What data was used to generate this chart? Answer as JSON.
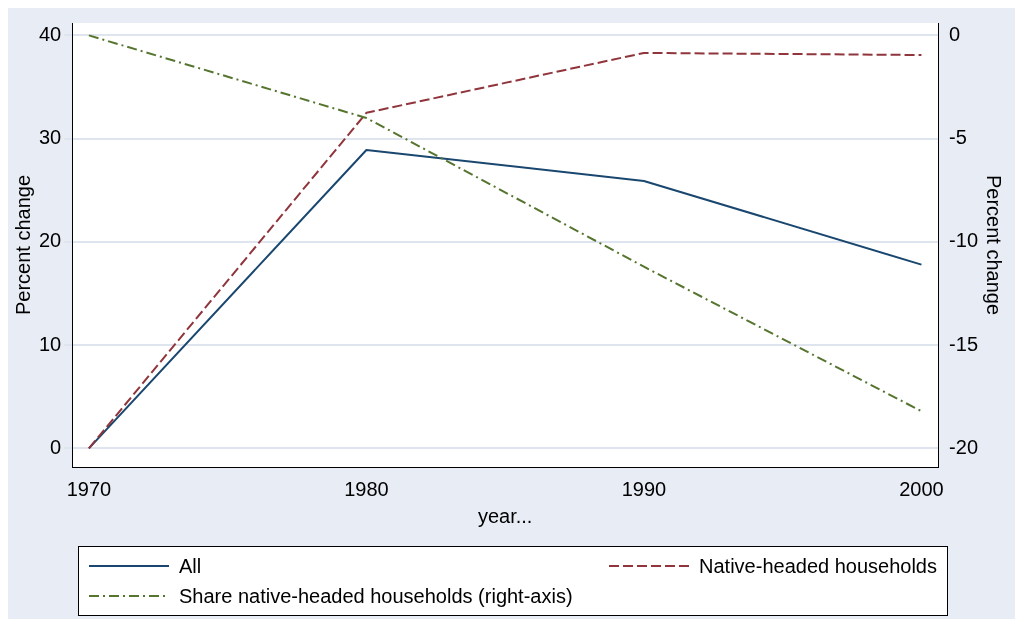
{
  "chart_data": {
    "type": "line",
    "xlabel": "year...",
    "ylabel": "Percent change",
    "y2label": "Percent change",
    "x": [
      1970,
      1980,
      1990,
      2000
    ],
    "xlim": [
      1969.4,
      2000.6
    ],
    "xticks": [
      1970,
      1980,
      1990,
      2000
    ],
    "ylim": [
      -1.8,
      41.2
    ],
    "yticks": [
      0,
      10,
      20,
      30,
      40
    ],
    "y2lim": [
      -20.9,
      0.6
    ],
    "y2ticks": [
      -20,
      -15,
      -10,
      -5,
      0
    ],
    "grid": "y",
    "legend": "bottom",
    "marker": "none",
    "series": [
      {
        "name": "All",
        "color": "#1a476f",
        "values": [
          0,
          28.9,
          25.9,
          17.8
        ],
        "line_style": "solid"
      },
      {
        "name": "Native-headed households",
        "color": "#90353b",
        "values": [
          0,
          32.5,
          38.3,
          38.1
        ],
        "line_style": "dashed"
      },
      {
        "name": "Share native-headed households (right-axis)",
        "color": "#55752f",
        "values": [
          0,
          -4,
          -11.2,
          -18.2
        ],
        "axis": "y2",
        "line_style": "dotted"
      }
    ]
  }
}
